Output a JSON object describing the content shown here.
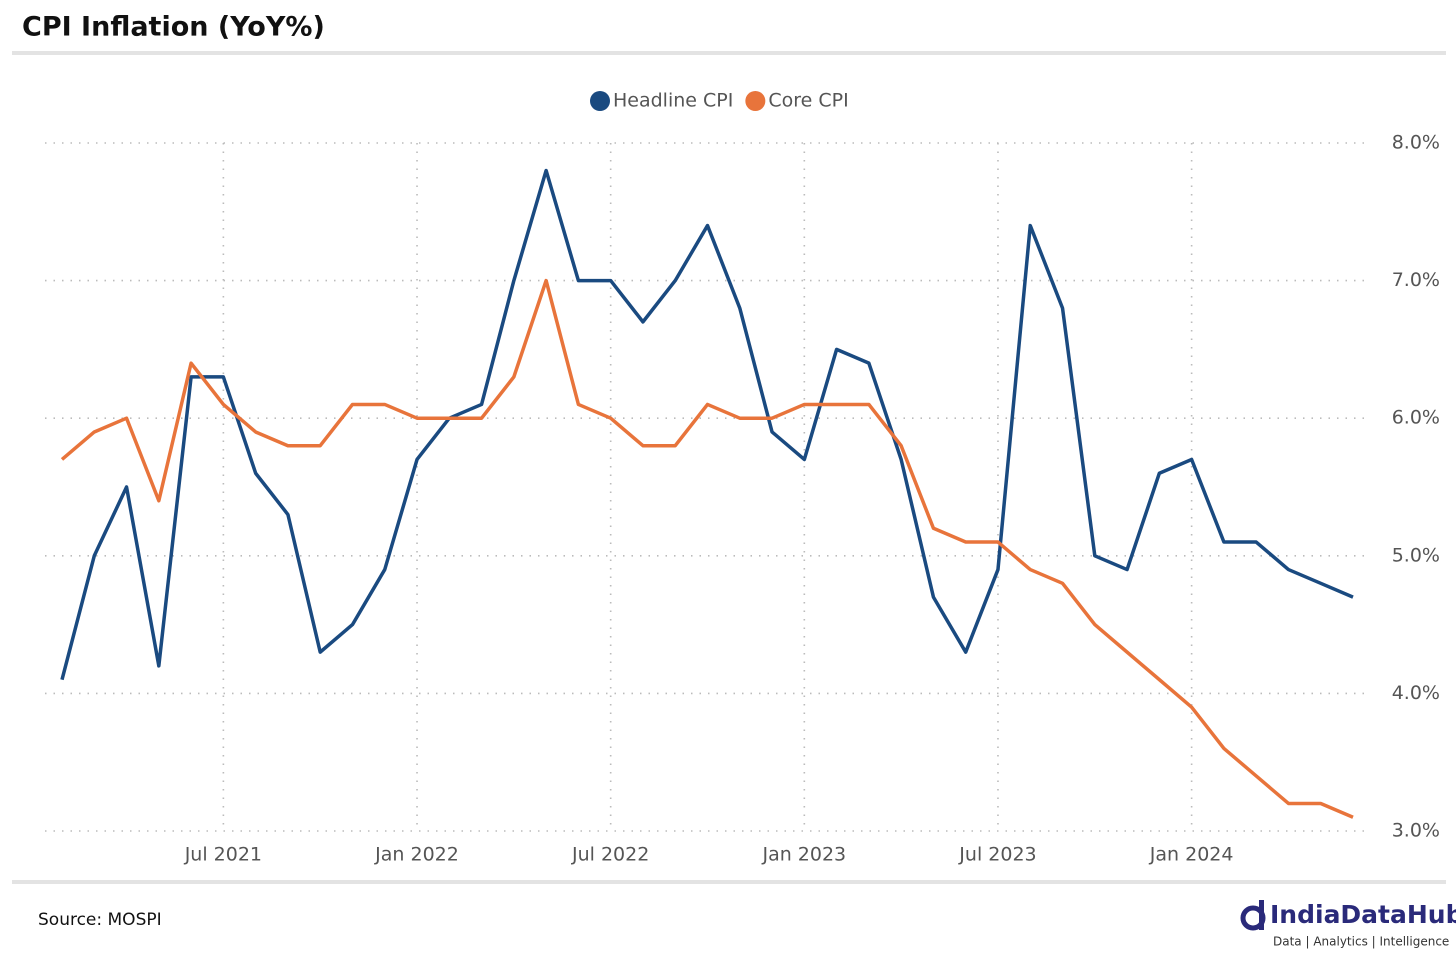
{
  "chart_data": {
    "type": "line",
    "title": "CPI Inflation (YoY%)",
    "x": [
      "2021-02",
      "2021-03",
      "2021-04",
      "2021-05",
      "2021-06",
      "2021-07",
      "2021-08",
      "2021-09",
      "2021-10",
      "2021-11",
      "2021-12",
      "2022-01",
      "2022-02",
      "2022-03",
      "2022-04",
      "2022-05",
      "2022-06",
      "2022-07",
      "2022-08",
      "2022-09",
      "2022-10",
      "2022-11",
      "2022-12",
      "2023-01",
      "2023-02",
      "2023-03",
      "2023-04",
      "2023-05",
      "2023-06",
      "2023-07",
      "2023-08",
      "2023-09",
      "2023-10",
      "2023-11",
      "2023-12",
      "2024-01",
      "2024-02",
      "2024-03",
      "2024-04",
      "2024-05",
      "2024-06"
    ],
    "series": [
      {
        "name": "Headline CPI",
        "color": "#1a4a80",
        "values": [
          4.1,
          5.0,
          5.5,
          4.2,
          6.3,
          6.3,
          5.6,
          5.3,
          4.3,
          4.5,
          4.9,
          5.7,
          6.0,
          6.1,
          7.0,
          7.8,
          7.0,
          7.0,
          6.7,
          7.0,
          7.4,
          6.8,
          5.9,
          5.7,
          6.5,
          6.4,
          5.7,
          4.7,
          4.3,
          4.9,
          7.4,
          6.8,
          5.0,
          4.9,
          5.6,
          5.7,
          5.1,
          5.1,
          4.9,
          4.8,
          4.7
        ]
      },
      {
        "name": "Core CPI",
        "color": "#e8743b",
        "values": [
          5.7,
          5.9,
          6.0,
          5.4,
          6.4,
          6.1,
          5.9,
          5.8,
          5.8,
          6.1,
          6.1,
          6.0,
          6.0,
          6.0,
          6.3,
          7.0,
          6.1,
          6.0,
          5.8,
          5.8,
          6.1,
          6.0,
          6.0,
          6.1,
          6.1,
          6.1,
          5.8,
          5.2,
          5.1,
          5.1,
          4.9,
          4.8,
          4.5,
          4.3,
          4.1,
          3.9,
          3.6,
          3.4,
          3.2,
          3.2,
          3.1
        ]
      }
    ],
    "xticks": [
      {
        "value": "2021-07",
        "label": "Jul 2021"
      },
      {
        "value": "2022-01",
        "label": "Jan 2022"
      },
      {
        "value": "2022-07",
        "label": "Jul 2022"
      },
      {
        "value": "2023-01",
        "label": "Jan 2023"
      },
      {
        "value": "2023-07",
        "label": "Jul 2023"
      },
      {
        "value": "2024-01",
        "label": "Jan 2024"
      }
    ],
    "ylim": [
      3,
      8
    ],
    "yticks": [
      {
        "value": 3,
        "label": "3.0%"
      },
      {
        "value": 4,
        "label": "4.0%"
      },
      {
        "value": 5,
        "label": "5.0%"
      },
      {
        "value": 6,
        "label": "6.0%"
      },
      {
        "value": 7,
        "label": "7.0%"
      },
      {
        "value": 8,
        "label": "8.0%"
      }
    ],
    "grid": true,
    "legend": "top",
    "source": "Source: MOSPI",
    "brand": "IndiaDataHub",
    "tagline": "Data | Analytics | Intelligence"
  }
}
